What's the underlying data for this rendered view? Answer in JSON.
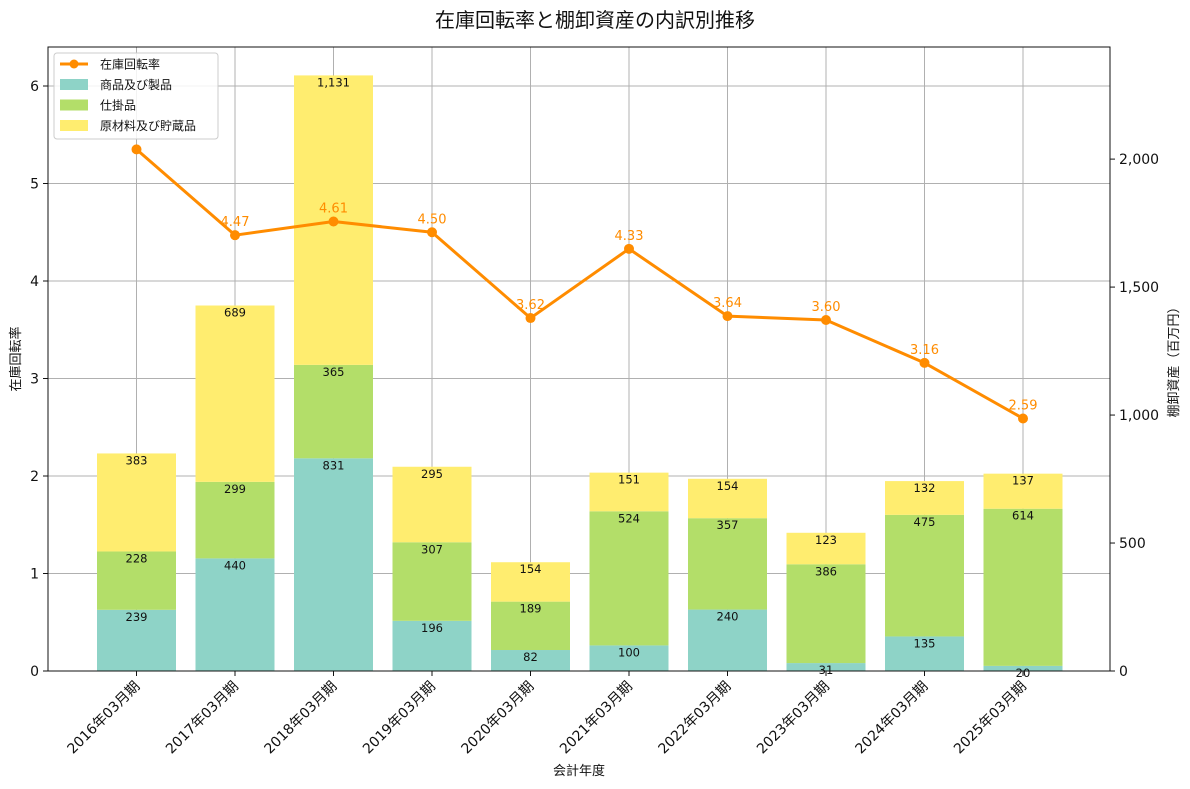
{
  "chart_data": {
    "type": "bar",
    "title": "在庫回転率と棚卸資産の内訳別推移",
    "xlabel": "会計年度",
    "ylabel_left": "在庫回転率",
    "ylabel_right": "棚卸資産（百万円）",
    "categories": [
      "2016年03月期",
      "2017年03月期",
      "2018年03月期",
      "2019年03月期",
      "2020年03月期",
      "2021年03月期",
      "2022年03月期",
      "2023年03月期",
      "2024年03月期",
      "2025年03月期"
    ],
    "series": [
      {
        "name": "商品及び製品",
        "axis": "right",
        "color": "#8ed3c7",
        "values": [
          239,
          440,
          831,
          196,
          82,
          100,
          240,
          31,
          135,
          20
        ],
        "labels": [
          "239",
          "440",
          "831",
          "196",
          "82",
          "100",
          "240",
          "31",
          "135",
          "20"
        ]
      },
      {
        "name": "仕掛品",
        "axis": "right",
        "color": "#b3de69",
        "values": [
          228,
          299,
          365,
          307,
          189,
          524,
          357,
          386,
          475,
          614
        ],
        "labels": [
          "228",
          "299",
          "365",
          "307",
          "189",
          "524",
          "357",
          "386",
          "475",
          "614"
        ]
      },
      {
        "name": "原材料及び貯蔵品",
        "axis": "right",
        "color": "#ffed6f",
        "values": [
          383,
          689,
          1131,
          295,
          154,
          151,
          154,
          123,
          132,
          137
        ],
        "labels": [
          "383",
          "689",
          "1,131",
          "295",
          "154",
          "151",
          "154",
          "123",
          "132",
          "137"
        ]
      },
      {
        "name": "在庫回転率",
        "type": "line",
        "axis": "left",
        "color": "#ff8c00",
        "values": [
          5.35,
          4.47,
          4.61,
          4.5,
          3.62,
          4.33,
          3.64,
          3.6,
          3.16,
          2.59
        ],
        "labels": [
          "",
          "4.47",
          "4.61",
          "4.50",
          "3.62",
          "4.33",
          "3.64",
          "3.60",
          "3.16",
          "2.59"
        ]
      }
    ],
    "ylim_left": [
      0,
      6.4
    ],
    "ylim_right": [
      0,
      2438
    ],
    "yticks_left": [
      0,
      1,
      2,
      3,
      4,
      5,
      6
    ],
    "yticks_left_labels": [
      "0",
      "1",
      "2",
      "3",
      "4",
      "5",
      "6"
    ],
    "yticks_right": [
      0,
      500,
      1000,
      1500,
      2000
    ],
    "yticks_right_labels": [
      "0",
      "500",
      "1,000",
      "1,500",
      "2,000"
    ],
    "grid": true,
    "legend": "top-left",
    "legend_order": [
      "在庫回転率",
      "商品及び製品",
      "仕掛品",
      "原材料及び貯蔵品"
    ]
  }
}
